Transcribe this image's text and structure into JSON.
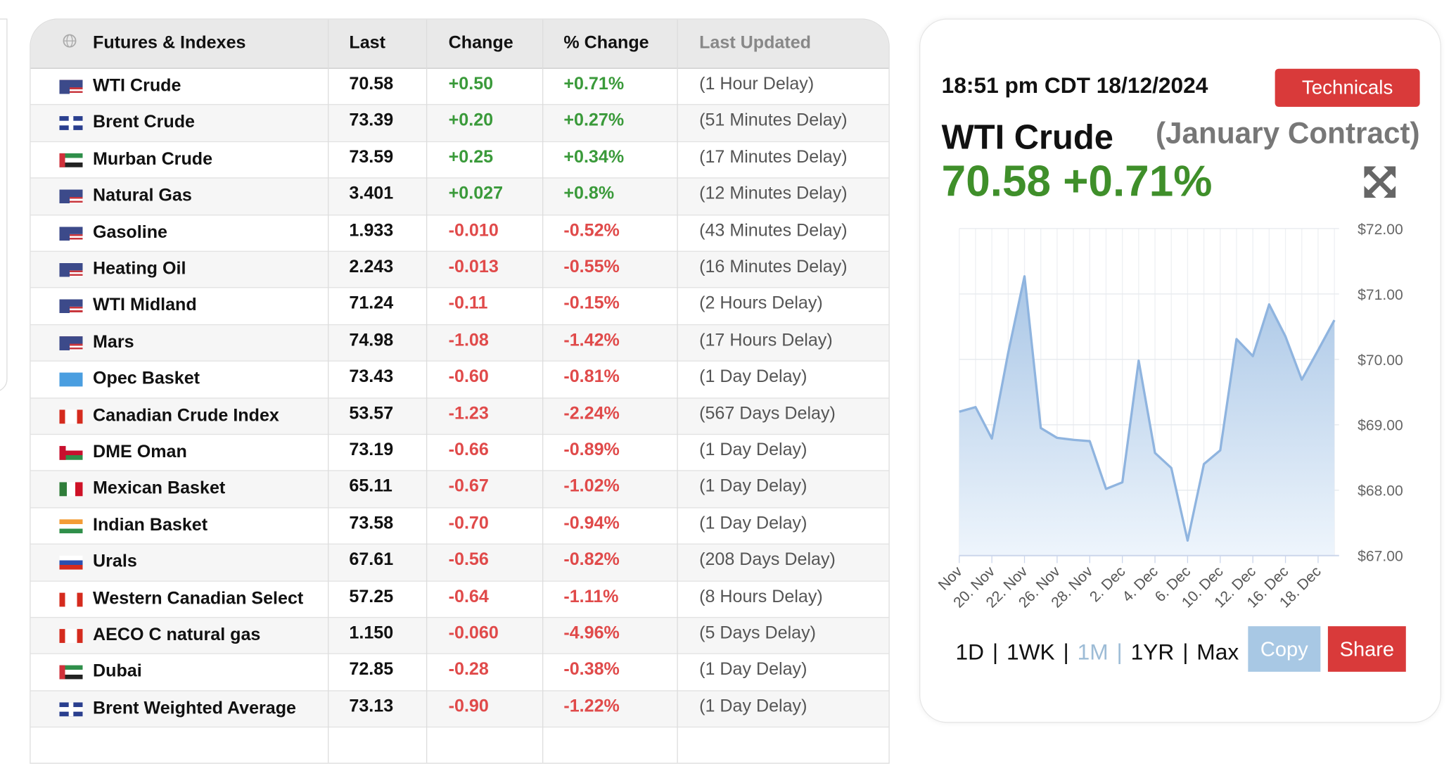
{
  "table": {
    "columns": [
      "Futures & Indexes",
      "Last",
      "Change",
      "% Change",
      "Last Updated"
    ],
    "rows": [
      [
        "WTI Crude",
        "70.58",
        "+0.50",
        "+0.71%",
        "(1 Hour Delay)"
      ],
      [
        "Brent Crude",
        "73.39",
        "+0.20",
        "+0.27%",
        "(51 Minutes Delay)"
      ],
      [
        "Murban Crude",
        "73.59",
        "+0.25",
        "+0.34%",
        "(17 Minutes Delay)"
      ],
      [
        "Natural Gas",
        "3.401",
        "+0.027",
        "+0.8%",
        "(12 Minutes Delay)"
      ],
      [
        "Gasoline",
        "1.933",
        "-0.010",
        "-0.52%",
        "(43 Minutes Delay)"
      ],
      [
        "Heating Oil",
        "2.243",
        "-0.013",
        "-0.55%",
        "(16 Minutes Delay)"
      ],
      [
        "WTI Midland",
        "71.24",
        "-0.11",
        "-0.15%",
        "(2 Hours Delay)"
      ],
      [
        "Mars",
        "74.98",
        "-1.08",
        "-1.42%",
        "(17 Hours Delay)"
      ],
      [
        "Opec Basket",
        "73.43",
        "-0.60",
        "-0.81%",
        "(1 Day Delay)"
      ],
      [
        "Canadian Crude Index",
        "53.57",
        "-1.23",
        "-2.24%",
        "(567 Days Delay)"
      ],
      [
        "DME Oman",
        "73.19",
        "-0.66",
        "-0.89%",
        "(1 Day Delay)"
      ],
      [
        "Mexican Basket",
        "65.11",
        "-0.67",
        "-1.02%",
        "(1 Day Delay)"
      ],
      [
        "Indian Basket",
        "73.58",
        "-0.70",
        "-0.94%",
        "(1 Day Delay)"
      ],
      [
        "Urals",
        "67.61",
        "-0.56",
        "-0.82%",
        "(208 Days Delay)"
      ],
      [
        "Western Canadian Select",
        "57.25",
        "-0.64",
        "-1.11%",
        "(8 Hours Delay)"
      ],
      [
        "AECO C natural gas",
        "1.150",
        "-0.060",
        "-4.96%",
        "(5 Days Delay)"
      ],
      [
        "Dubai",
        "72.85",
        "-0.28",
        "-0.38%",
        "(1 Day Delay)"
      ],
      [
        "Brent Weighted Average",
        "73.13",
        "-0.90",
        "-1.22%",
        "(1 Day Delay)"
      ]
    ]
  },
  "panel": {
    "timestamp": "18:51 pm CDT 18/12/2024",
    "button": "Technicals",
    "name": "WTI Crude",
    "contract": "(January Contract)",
    "quote": "70.58 +0.71%",
    "ranges": [
      "1D",
      "1WK",
      "1M",
      "1YR",
      "Max"
    ],
    "active_range": 2,
    "copy": "Copy",
    "share": "Share",
    "chart": {
      "type": "area",
      "color": "#8fb4df",
      "categories": [
        "Nov",
        null,
        "20. Nov",
        null,
        "22. Nov",
        null,
        "26. Nov",
        null,
        "28. Nov",
        null,
        "2. Dec",
        null,
        "4. Dec",
        null,
        "6. Dec",
        null,
        "10. Dec",
        null,
        "12. Dec",
        null,
        "16. Dec",
        null,
        "18. Dec",
        null
      ],
      "values": [
        69.2,
        69.27,
        68.79,
        70.1,
        71.27,
        68.95,
        68.8,
        68.77,
        68.75,
        68.02,
        68.12,
        69.98,
        68.57,
        68.34,
        67.23,
        68.4,
        68.61,
        70.31,
        70.05,
        70.84,
        70.35,
        69.69,
        70.14,
        70.6
      ],
      "ylim": [
        67,
        72
      ],
      "yticks": [
        {
          "value": 67,
          "label": "$67.00"
        },
        {
          "value": 68,
          "label": "$68.00"
        },
        {
          "value": 69,
          "label": "$69.00"
        },
        {
          "value": 70,
          "label": "$70.00"
        },
        {
          "value": 71,
          "label": "$71.00"
        },
        {
          "value": 72,
          "label": "$72.00"
        }
      ],
      "grid": true
    }
  }
}
